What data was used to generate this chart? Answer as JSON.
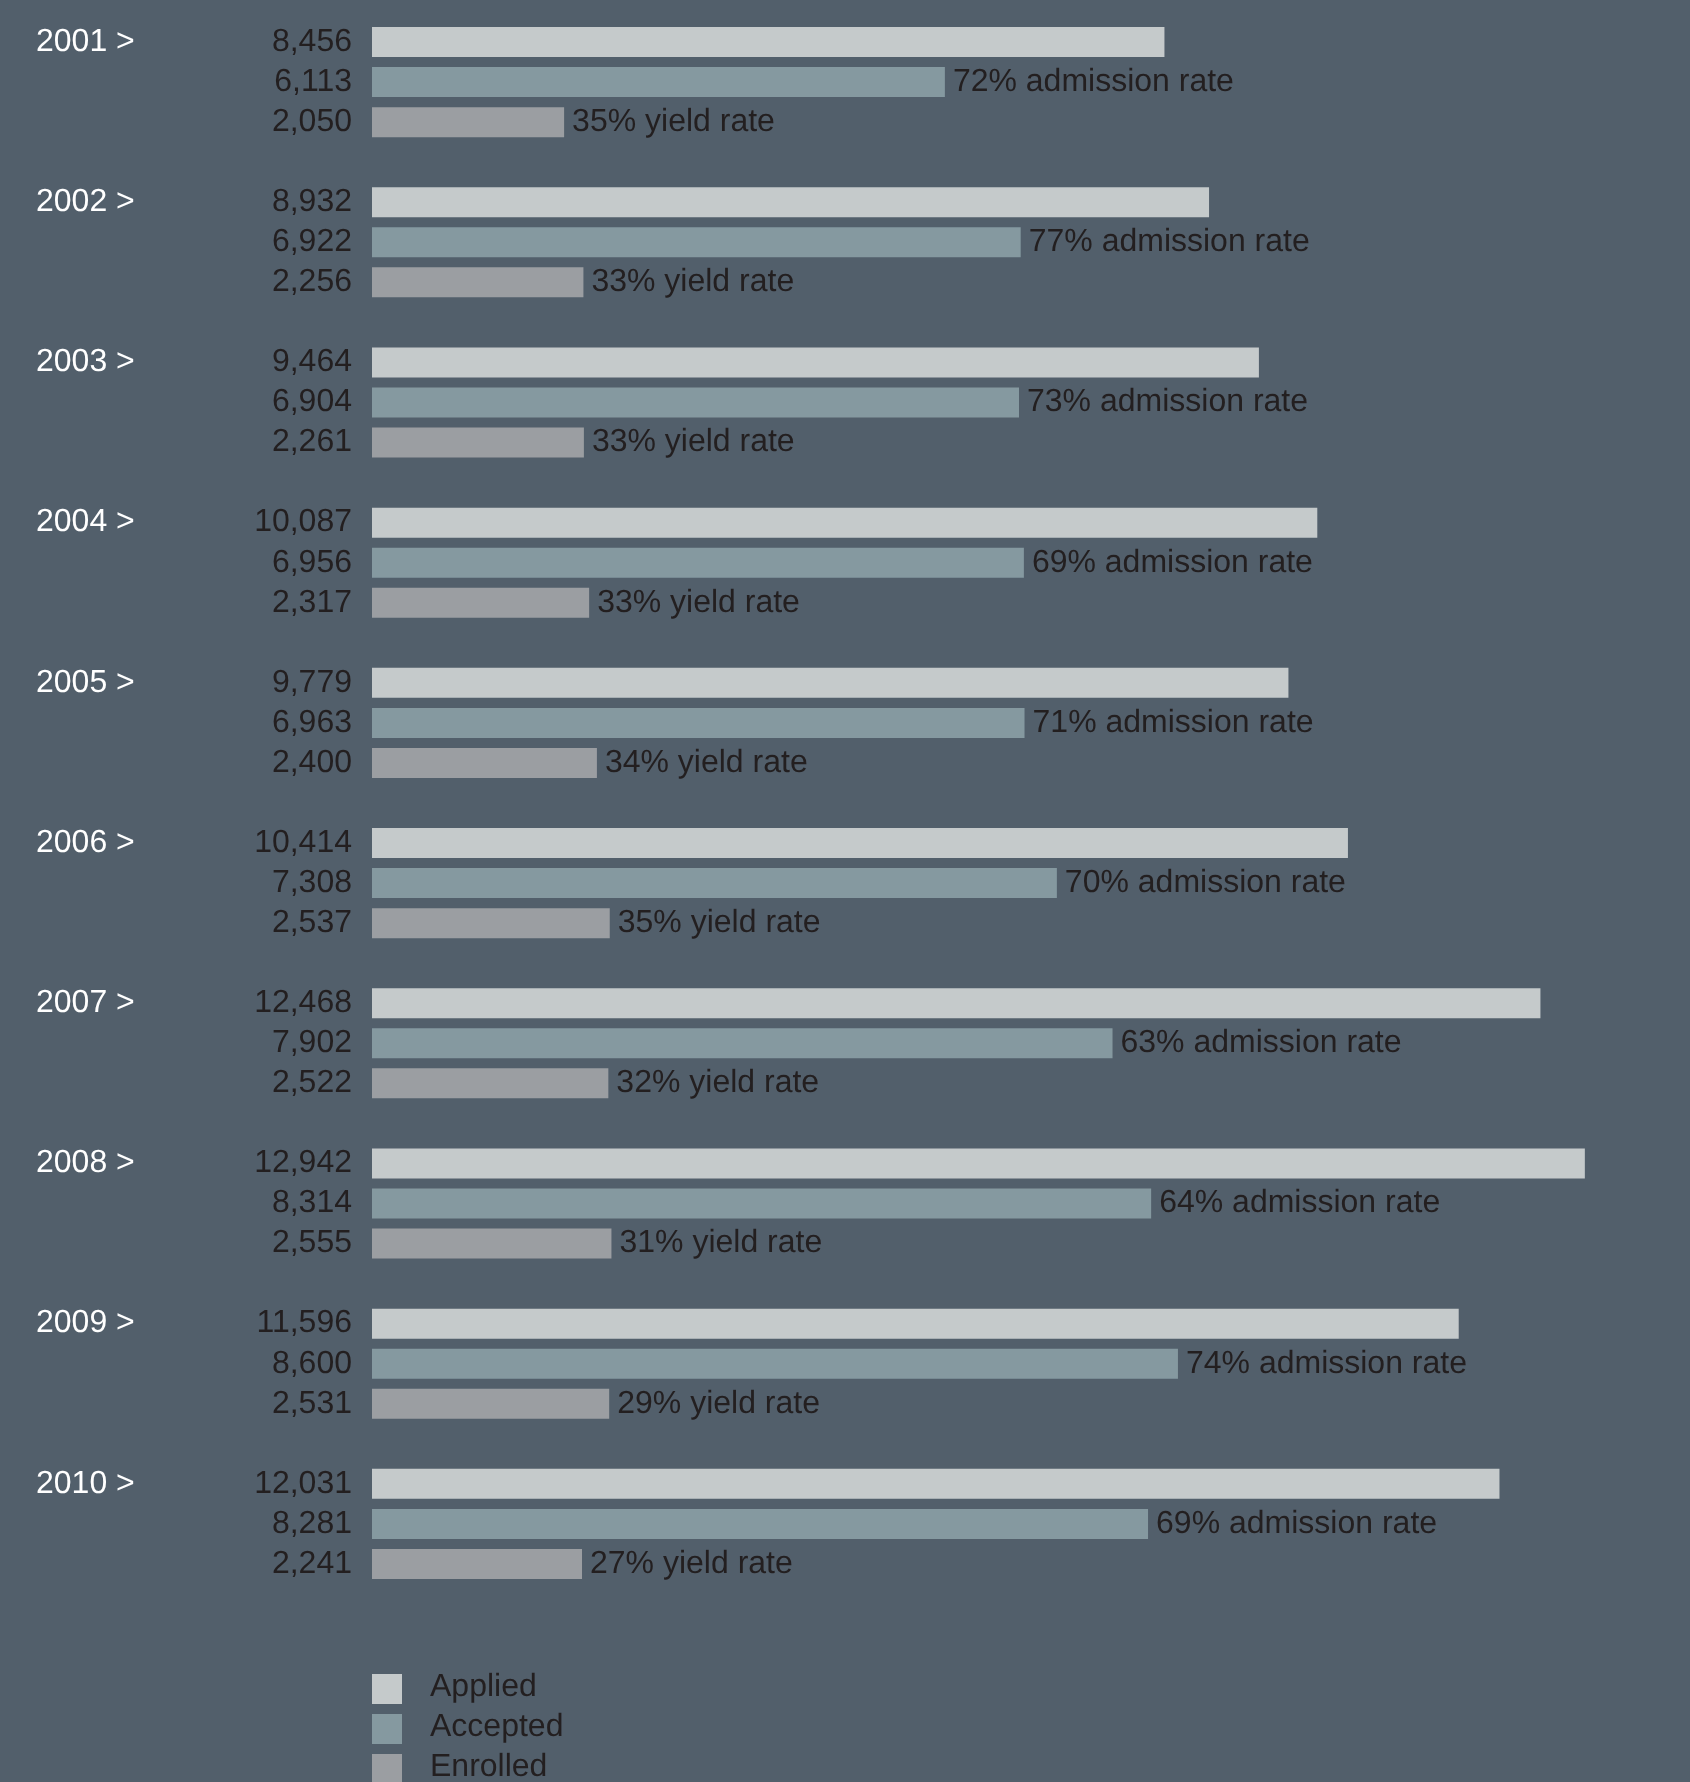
{
  "chart_data": {
    "type": "bar",
    "orientation": "horizontal",
    "categories": [
      "2001 >",
      "2002 >",
      "2003 >",
      "2004 >",
      "2005 >",
      "2006 >",
      "2007 >",
      "2008 >",
      "2009 >",
      "2010 >"
    ],
    "series": [
      {
        "name": "Applied",
        "color": "#c5cacb",
        "values": [
          8456,
          8932,
          9464,
          10087,
          9779,
          10414,
          12468,
          12942,
          11596,
          12031
        ],
        "value_labels": [
          "8,456",
          "8,932",
          "9,464",
          "10,087",
          "9,779",
          "10,414",
          "12,468",
          "12,942",
          "11,596",
          "12,031"
        ]
      },
      {
        "name": "Accepted",
        "color": "#8599a0",
        "values": [
          6113,
          6922,
          6904,
          6956,
          6963,
          7308,
          7902,
          8314,
          8600,
          8281
        ],
        "value_labels": [
          "6,113",
          "6,922",
          "6,904",
          "6,956",
          "6,963",
          "7,308",
          "7,902",
          "8,314",
          "8,600",
          "8,281"
        ]
      },
      {
        "name": "Enrolled",
        "color": "#9b9ea2",
        "values": [
          2050,
          2256,
          2261,
          2317,
          2400,
          2537,
          2522,
          2555,
          2531,
          2241
        ],
        "value_labels": [
          "2,050",
          "2,256",
          "2,261",
          "2,317",
          "2,400",
          "2,537",
          "2,522",
          "2,555",
          "2,531",
          "2,241"
        ]
      }
    ],
    "tick_labels": "y",
    "legend": "bottom",
    "annotations": [
      "72% admission rate",
      "35% yield rate",
      "77% admission rate",
      "33% yield rate",
      "73% admission rate",
      "33% yield rate",
      "69% admission rate",
      "33% yield rate",
      "71% admission rate",
      "34% yield rate",
      "70% admission rate",
      "35% yield rate",
      "63% admission rate",
      "32% yield rate",
      "64% admission rate",
      "31% yield rate",
      "74% admission rate",
      "29% yield rate",
      "69% admission rate",
      "27% yield rate"
    ]
  }
}
